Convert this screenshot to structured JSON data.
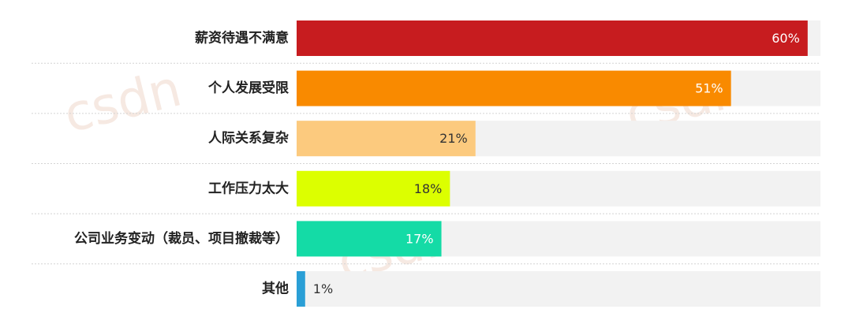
{
  "chart_data": {
    "type": "bar",
    "orientation": "horizontal",
    "categories": [
      "薪资待遇不满意",
      "个人发展受限",
      "人际关系复杂",
      "工作压力太大",
      "公司业务变动（裁员、项目撤裁等）",
      "其他"
    ],
    "values": [
      60,
      51,
      21,
      18,
      17,
      1
    ],
    "value_labels": [
      "60%",
      "51%",
      "21%",
      "18%",
      "17%",
      "1%"
    ],
    "colors": [
      "#c71c1f",
      "#f98a00",
      "#fcca7e",
      "#dcff00",
      "#14dba6",
      "#2a9fd6"
    ],
    "xlim": [
      0,
      61.5
    ],
    "grid": false,
    "title": "",
    "xlabel": "",
    "ylabel": ""
  },
  "watermark": {
    "text": "csdn"
  }
}
